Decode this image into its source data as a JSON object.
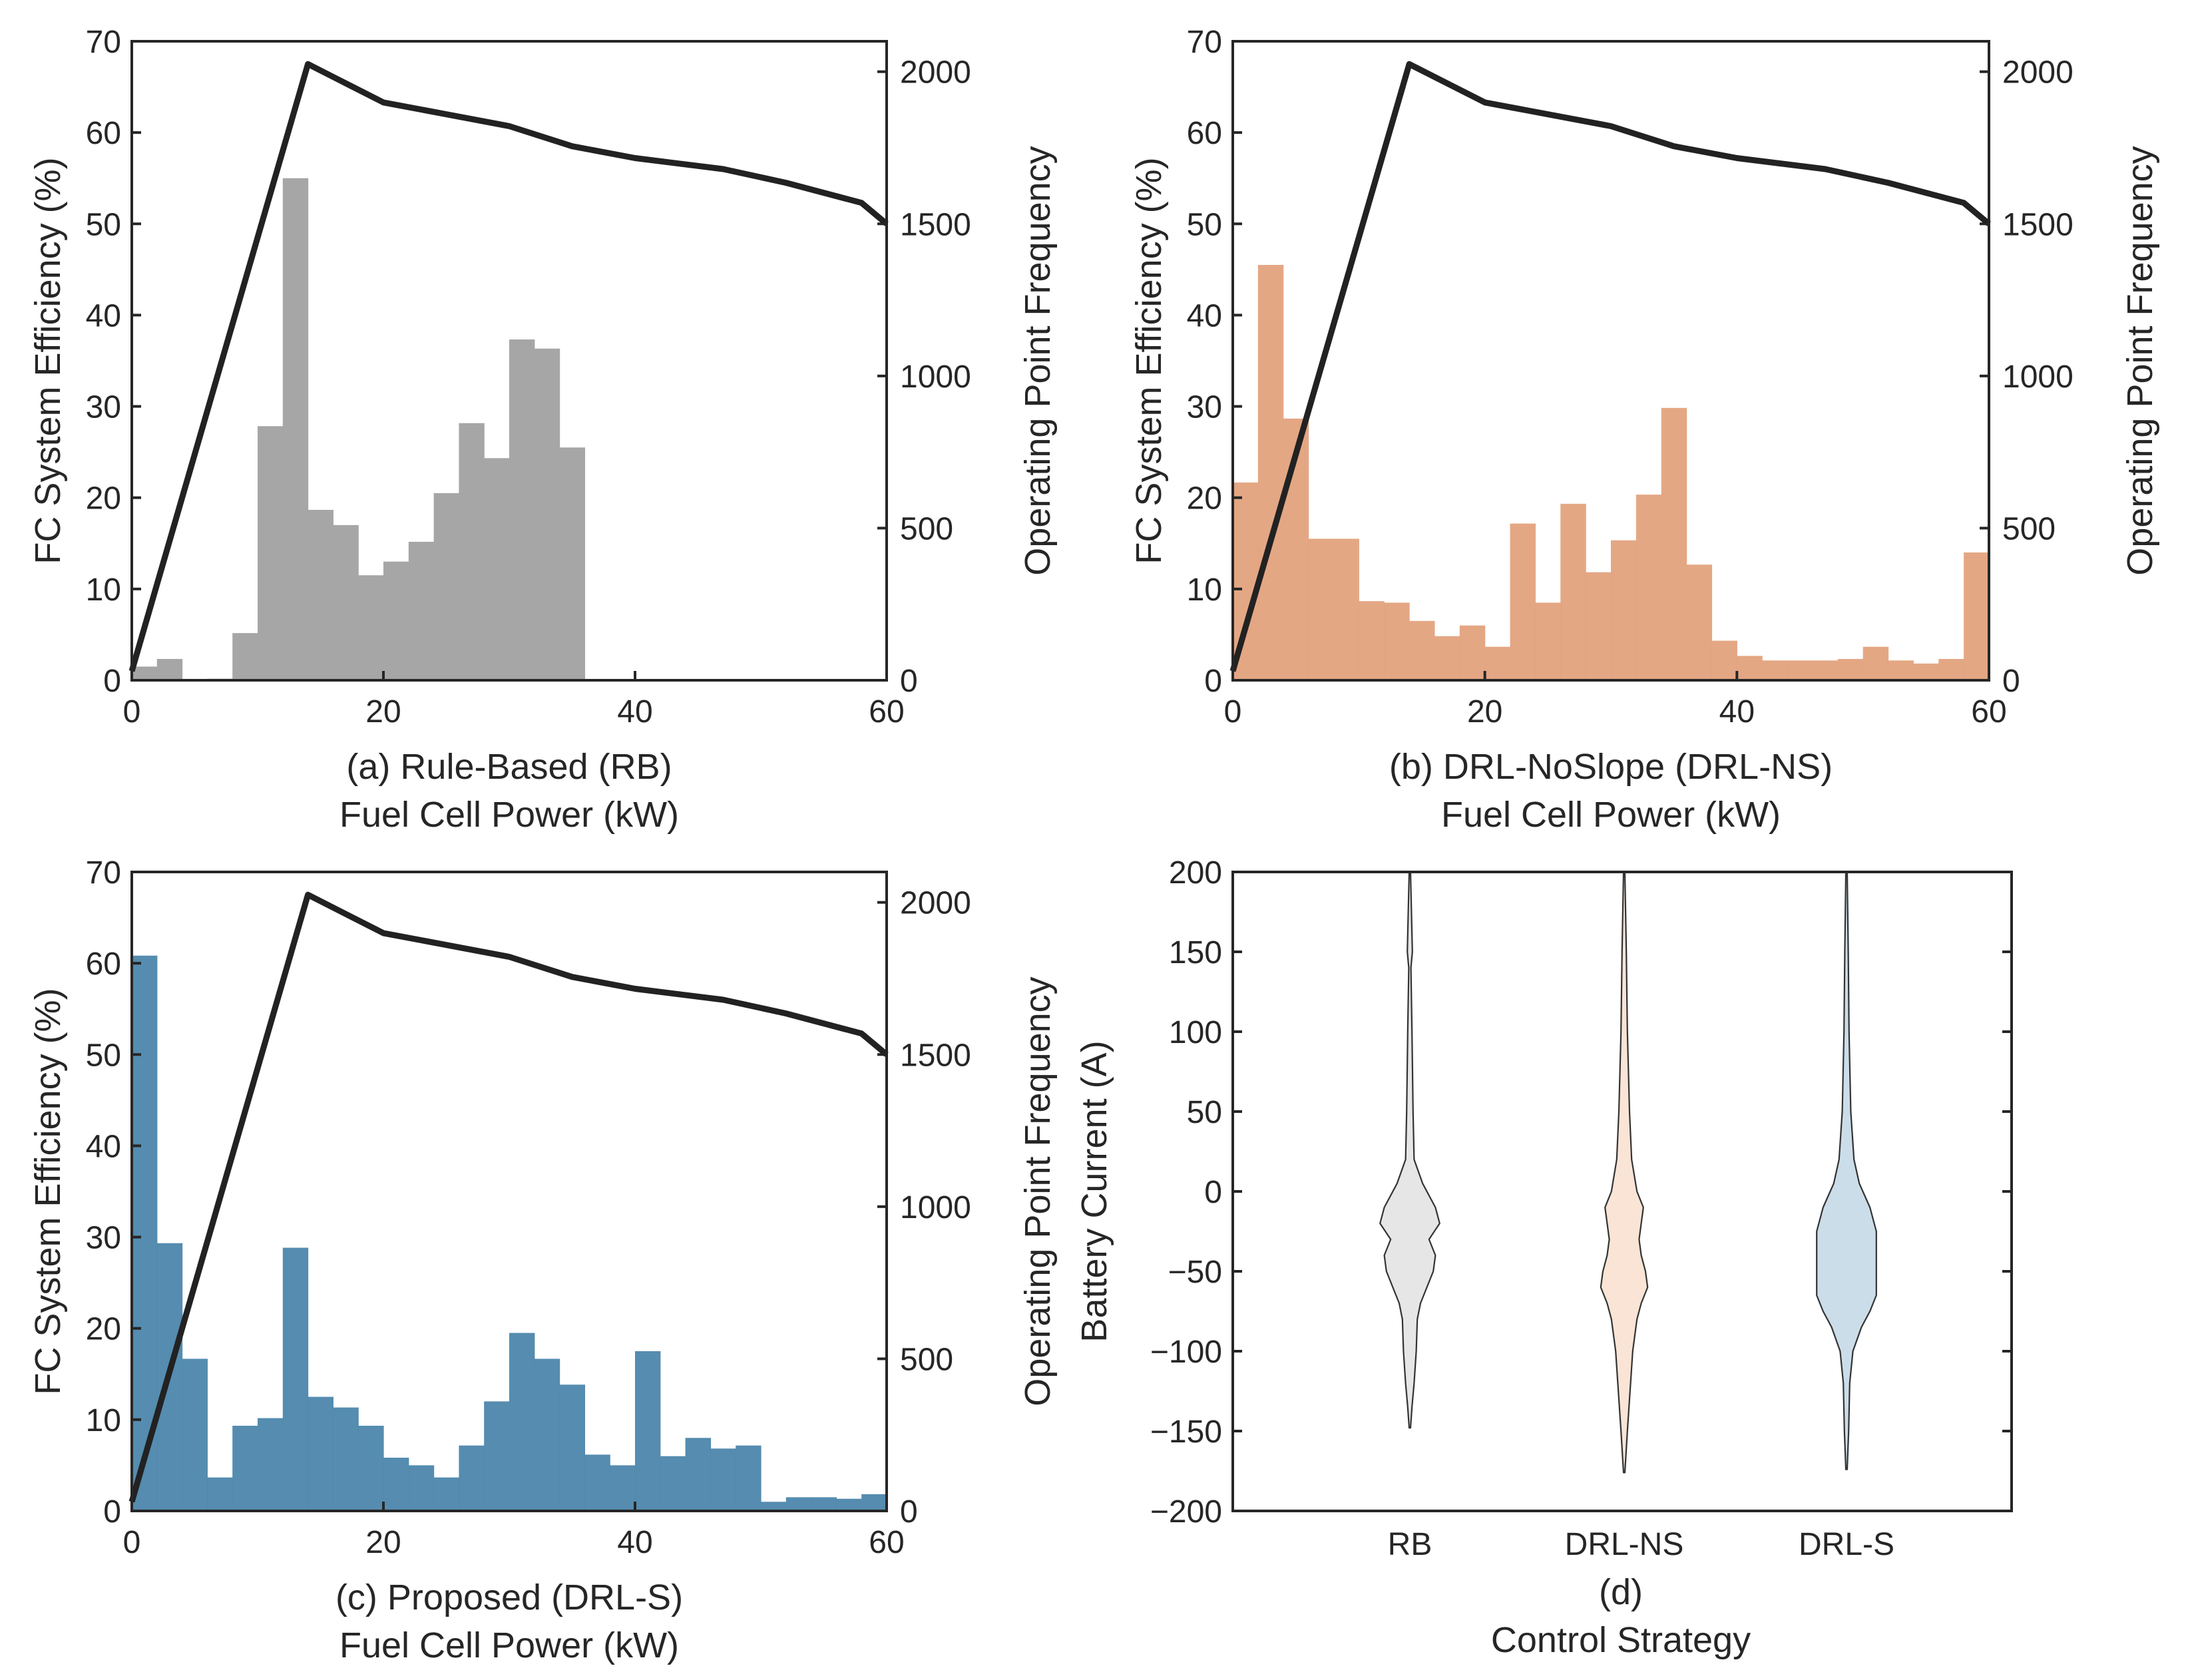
{
  "colors": {
    "axis": "#262626",
    "efficiency_line": "#222222",
    "rb_bars": "#a6a6a6",
    "drl_ns_bars": "#e2a07a",
    "drl_s_bars": "#4f88ad",
    "violin_rb": "#e6e6e6",
    "violin_drl_ns": "#f9e4d6",
    "violin_drl_s": "#cbdde9"
  },
  "chart_data": [
    {
      "type": "bar",
      "caption": "(a) Rule-Based (RB)",
      "xlabel": "Fuel Cell Power (kW)",
      "ylabel": "FC System Efficiency (%)",
      "y2label": "Operating Point Frequency",
      "xlim": [
        0,
        60
      ],
      "ylim": [
        0,
        70
      ],
      "y2lim": [
        0,
        2100
      ],
      "xticks": [
        "0",
        "20",
        "40",
        "60"
      ],
      "yticks": [
        "0",
        "10",
        "20",
        "30",
        "40",
        "50",
        "60",
        "70"
      ],
      "y2ticks": [
        "0",
        "500",
        "1000",
        "1500",
        "2000"
      ],
      "bin_width": 2,
      "bin_starts": [
        0,
        2,
        4,
        6,
        8,
        10,
        12,
        14,
        16,
        18,
        20,
        22,
        24,
        26,
        28,
        30,
        32,
        34
      ],
      "frequency": [
        45,
        70,
        0,
        5,
        155,
        835,
        1650,
        560,
        510,
        345,
        390,
        455,
        615,
        845,
        730,
        1120,
        1090,
        765
      ],
      "efficiency_curve": {
        "power_kW": [
          0,
          14,
          20,
          25,
          30,
          35,
          40,
          47,
          52,
          58,
          60
        ],
        "efficiency_pct": [
          1,
          67.5,
          63.3,
          62,
          60.7,
          58.5,
          57.2,
          56,
          54.5,
          52.3,
          50
        ]
      }
    },
    {
      "type": "bar",
      "caption": "(b) DRL-NoSlope (DRL-NS)",
      "xlabel": "Fuel Cell Power (kW)",
      "ylabel": "FC System Efficiency (%)",
      "y2label": "Operating Point Frequency",
      "xlim": [
        0,
        60
      ],
      "ylim": [
        0,
        70
      ],
      "y2lim": [
        0,
        2100
      ],
      "xticks": [
        "0",
        "20",
        "40",
        "60"
      ],
      "yticks": [
        "0",
        "10",
        "20",
        "30",
        "40",
        "50",
        "60",
        "70"
      ],
      "y2ticks": [
        "0",
        "500",
        "1000",
        "1500",
        "2000"
      ],
      "bin_width": 2,
      "bin_starts": [
        0,
        2,
        4,
        6,
        8,
        10,
        12,
        14,
        16,
        18,
        20,
        22,
        24,
        26,
        28,
        30,
        32,
        34,
        36,
        38,
        40,
        42,
        44,
        46,
        48,
        50,
        52,
        54,
        56,
        58
      ],
      "frequency": [
        650,
        1365,
        860,
        465,
        465,
        260,
        255,
        195,
        145,
        180,
        110,
        515,
        255,
        580,
        355,
        460,
        610,
        895,
        380,
        130,
        80,
        65,
        65,
        65,
        70,
        110,
        65,
        55,
        70,
        420
      ],
      "efficiency_curve": {
        "power_kW": [
          0,
          14,
          20,
          25,
          30,
          35,
          40,
          47,
          52,
          58,
          60
        ],
        "efficiency_pct": [
          1,
          67.5,
          63.3,
          62,
          60.7,
          58.5,
          57.2,
          56,
          54.5,
          52.3,
          50
        ]
      }
    },
    {
      "type": "bar",
      "caption": "(c) Proposed (DRL-S)",
      "xlabel": "Fuel Cell Power (kW)",
      "ylabel": "FC System Efficiency (%)",
      "y2label": "Operating Point Frequency",
      "xlim": [
        0,
        60
      ],
      "ylim": [
        0,
        70
      ],
      "y2lim": [
        0,
        2100
      ],
      "xticks": [
        "0",
        "20",
        "40",
        "60"
      ],
      "yticks": [
        "0",
        "10",
        "20",
        "30",
        "40",
        "50",
        "60",
        "70"
      ],
      "y2ticks": [
        "0",
        "500",
        "1000",
        "1500",
        "2000"
      ],
      "bin_width": 2,
      "bin_starts": [
        0,
        2,
        4,
        6,
        8,
        10,
        12,
        14,
        16,
        18,
        20,
        22,
        24,
        26,
        28,
        30,
        32,
        34,
        36,
        38,
        40,
        42,
        44,
        46,
        48,
        50,
        52,
        54,
        56,
        58
      ],
      "frequency": [
        1825,
        880,
        500,
        110,
        280,
        305,
        865,
        375,
        340,
        280,
        175,
        150,
        110,
        215,
        360,
        585,
        500,
        415,
        185,
        150,
        525,
        180,
        240,
        205,
        215,
        30,
        45,
        45,
        40,
        55
      ],
      "efficiency_curve": {
        "power_kW": [
          0,
          14,
          20,
          25,
          30,
          35,
          40,
          47,
          52,
          58,
          60
        ],
        "efficiency_pct": [
          1,
          67.5,
          63.3,
          62,
          60.7,
          58.5,
          57.2,
          56,
          54.5,
          52.3,
          50
        ]
      }
    },
    {
      "type": "violin",
      "caption": "(d)",
      "xlabel": "Control Strategy",
      "ylabel": "Battery Current (A)",
      "categories": [
        "RB",
        "DRL-NS",
        "DRL-S"
      ],
      "ylim": [
        -200,
        200
      ],
      "yticks": [
        "200",
        "150",
        "100",
        "50",
        "0",
        "-50",
        "-100",
        "-150",
        "-200"
      ],
      "series": [
        {
          "name": "RB",
          "min": -148,
          "max": 200,
          "profile_y": [
            200,
            150,
            140,
            100,
            50,
            20,
            5,
            -10,
            -20,
            -30,
            -40,
            -50,
            -60,
            -70,
            -80,
            -100,
            -120,
            -135,
            -148
          ],
          "profile_halfwidth_A": [
            0.3,
            1.2,
            0.5,
            1,
            1.5,
            2,
            6,
            12,
            14,
            9,
            12,
            11,
            8,
            5,
            3.5,
            3,
            2,
            1,
            0.3
          ]
        },
        {
          "name": "DRL-NS",
          "min": -176,
          "max": 200,
          "profile_y": [
            200,
            150,
            100,
            50,
            20,
            0,
            -10,
            -20,
            -30,
            -40,
            -50,
            -60,
            -70,
            -80,
            -100,
            -130,
            -150,
            -176
          ],
          "profile_halfwidth_A": [
            0.3,
            1,
            1.5,
            2.5,
            3.5,
            6,
            9,
            8,
            7,
            8,
            10,
            11,
            8,
            6,
            4,
            2.5,
            1.5,
            0.3
          ]
        },
        {
          "name": "DRL-S",
          "min": -174,
          "max": 200,
          "profile_y": [
            200,
            150,
            100,
            50,
            20,
            5,
            -10,
            -20,
            -25,
            -35,
            -50,
            -65,
            -75,
            -85,
            -100,
            -120,
            -150,
            -174
          ],
          "profile_halfwidth_A": [
            0.3,
            0.8,
            1.2,
            2,
            3.5,
            6,
            11,
            13,
            14,
            14,
            14,
            14,
            11,
            7,
            3,
            1.5,
            1,
            0.3
          ]
        }
      ]
    }
  ]
}
